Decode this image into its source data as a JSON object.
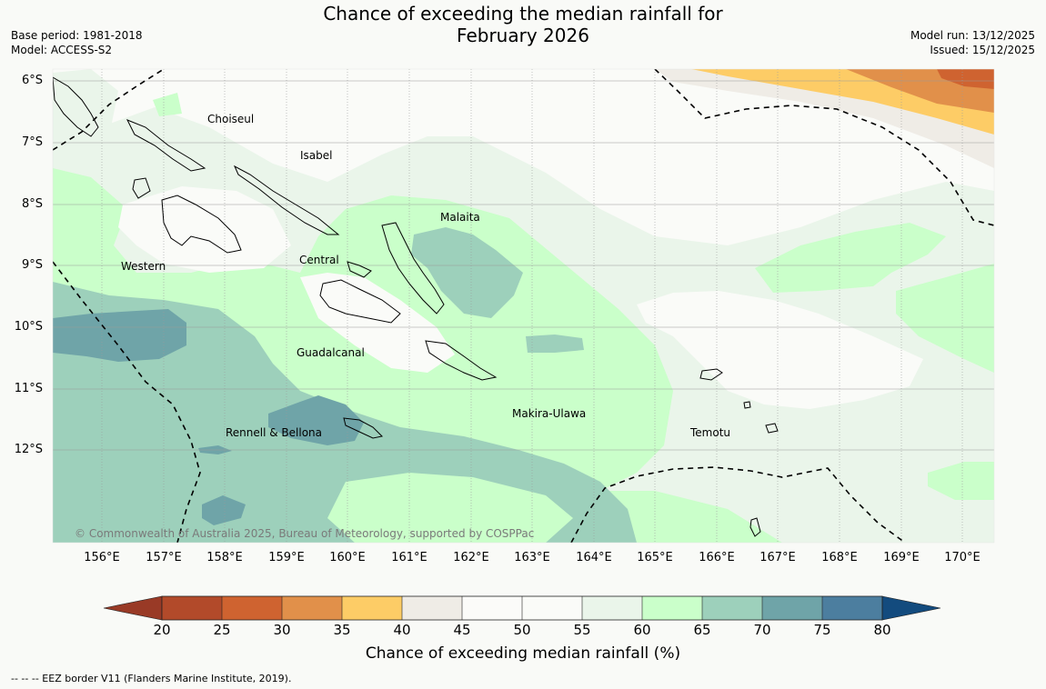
{
  "title_line1": "Chance of exceeding the median rainfall for",
  "title_line2": "February 2026",
  "base_period": "Base period: 1981-2018",
  "model": "Model: ACCESS-S2",
  "model_run": "Model run: 13/12/2025",
  "issued": "Issued: 15/12/2025",
  "lat_labels": [
    "6°S",
    "7°S",
    "8°S",
    "9°S",
    "10°S",
    "11°S",
    "12°S"
  ],
  "lon_labels": [
    "156°E",
    "157°E",
    "158°E",
    "159°E",
    "160°E",
    "161°E",
    "162°E",
    "163°E",
    "164°E",
    "165°E",
    "166°E",
    "167°E",
    "168°E",
    "169°E",
    "170°E"
  ],
  "regions": {
    "choiseul": "Choiseul",
    "isabel": "Isabel",
    "malaita": "Malaita",
    "central": "Central",
    "western": "Western",
    "guadalcanal": "Guadalcanal",
    "makira_ulawa": "Makira-Ulawa",
    "temotu": "Temotu",
    "rennell_bellona": "Rennell & Bellona"
  },
  "copyright": "© Commonwealth of Australia 2025, Bureau of Meteorology, supported by COSPPac",
  "colorbar": {
    "ticks": [
      "20",
      "25",
      "30",
      "35",
      "40",
      "45",
      "50",
      "55",
      "60",
      "65",
      "70",
      "75",
      "80"
    ],
    "colors": [
      "#b24a2a",
      "#cf6330",
      "#e1904a",
      "#fdcc66",
      "#efece6",
      "#fbfbf9",
      "#fafbf8",
      "#eaf5ea",
      "#caffca",
      "#9dd0bb",
      "#6fa4a8",
      "#4c7e9f"
    ],
    "under_color": "#993a26",
    "over_color": "#134b7e",
    "label": "Chance of exceeding median rainfall (%)"
  },
  "footnote": "--  --  -- EEZ border V11 (Flanders Marine Institute, 2019)."
}
